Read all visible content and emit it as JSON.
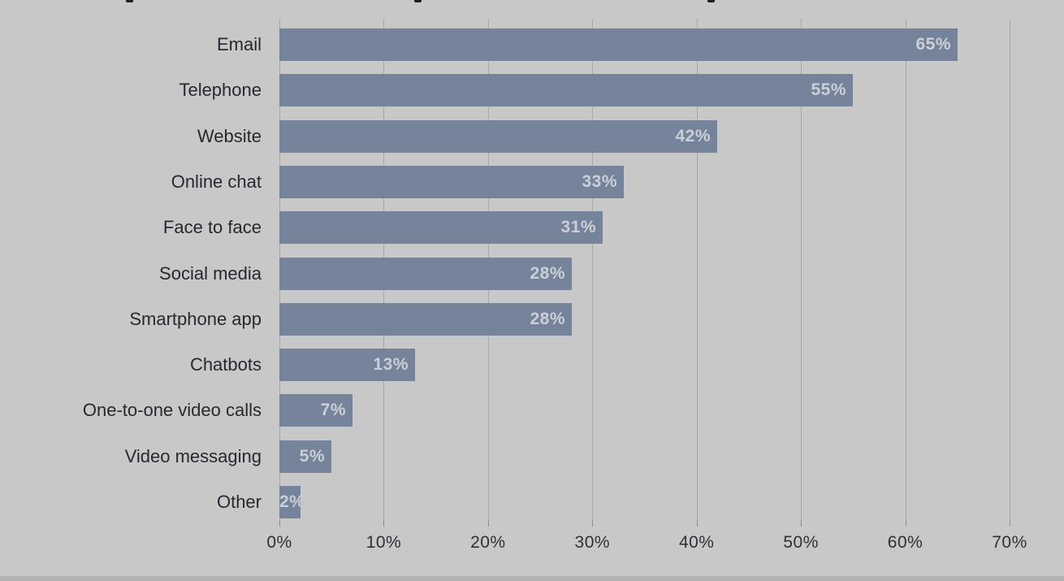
{
  "chart_data": {
    "type": "bar",
    "orientation": "horizontal",
    "title": "",
    "xlabel": "",
    "ylabel": "",
    "categories": [
      "Email",
      "Telephone",
      "Website",
      "Online chat",
      "Face to face",
      "Social media",
      "Smartphone app",
      "Chatbots",
      "One-to-one video calls",
      "Video messaging",
      "Other"
    ],
    "values": [
      65,
      55,
      42,
      33,
      31,
      28,
      28,
      13,
      7,
      5,
      2
    ],
    "value_labels": [
      "65%",
      "55%",
      "42%",
      "33%",
      "31%",
      "28%",
      "28%",
      "13%",
      "7%",
      "5%",
      "2%"
    ],
    "xlim": [
      0,
      70
    ],
    "x_tick_values": [
      0,
      10,
      20,
      30,
      40,
      50,
      60,
      70
    ],
    "x_tick_labels": [
      "0%",
      "10%",
      "20%",
      "30%",
      "40%",
      "50%",
      "60%",
      "70%"
    ],
    "grid": "vertical",
    "legend": "none",
    "colors": {
      "background": "#c8c8c8",
      "bar": "#75849a",
      "bar_value_text": "#cbd0d7",
      "gridline": "#a7a7a7",
      "tick": "#8d8d8d",
      "category_text": "#26292f",
      "axis_text": "#2e3138"
    }
  }
}
